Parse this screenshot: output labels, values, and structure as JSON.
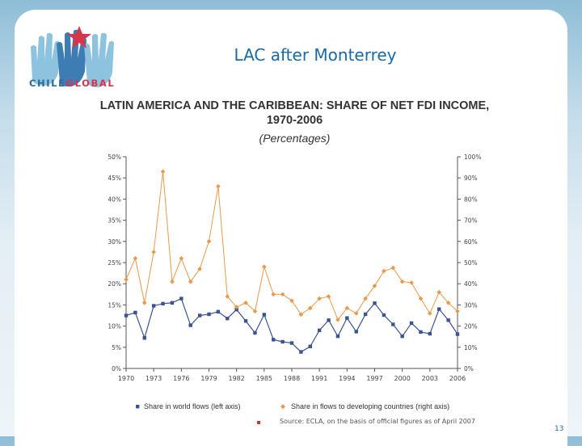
{
  "slide": {
    "title": "LAC after Monterrey",
    "logo_text_part1": "CHILE",
    "logo_text_part2": "GLOBAL",
    "source": "Source: ECLA, on the basis of official figures as of April 2007",
    "page_number": "13"
  },
  "colors": {
    "left_series": "#3a5393",
    "right_series": "#e8994a",
    "title_blue": "#1a6aa3"
  },
  "chart_data": {
    "type": "line",
    "title": "LATIN AMERICA AND THE CARIBBEAN: SHARE OF NET FDI INCOME, 1970-2006",
    "subtitle": "(Percentages)",
    "x_ticks": [
      1970,
      1973,
      1976,
      1979,
      1982,
      1985,
      1988,
      1991,
      1994,
      1997,
      2000,
      2003,
      2006
    ],
    "xlim": [
      1970,
      2006
    ],
    "left_axis": {
      "ylim": [
        0,
        50
      ],
      "ticks": [
        "0%",
        "5%",
        "10%",
        "15%",
        "20%",
        "25%",
        "30%",
        "35%",
        "40%",
        "45%",
        "50%"
      ]
    },
    "right_axis": {
      "ylim": [
        0,
        100
      ],
      "ticks": [
        "0%",
        "10%",
        "20%",
        "30%",
        "40%",
        "50%",
        "60%",
        "70%",
        "80%",
        "90%",
        "100%"
      ]
    },
    "legend_placement": "bottom",
    "series": [
      {
        "name": "Share in world flows (left axis)",
        "axis": "left",
        "x": [
          1970,
          1971,
          1972,
          1973,
          1974,
          1975,
          1976,
          1977,
          1978,
          1979,
          1980,
          1981,
          1982,
          1983,
          1984,
          1985,
          1986,
          1987,
          1988,
          1989,
          1990,
          1991,
          1992,
          1993,
          1994,
          1995,
          1996,
          1997,
          1998,
          1999,
          2000,
          2001,
          2002,
          2003,
          2004,
          2005,
          2006
        ],
        "values": [
          12.5,
          13.2,
          7.2,
          14.8,
          15.3,
          15.5,
          16.5,
          10.2,
          12.5,
          12.8,
          13.4,
          11.8,
          13.9,
          11.2,
          8.4,
          12.7,
          6.8,
          6.3,
          6.0,
          3.9,
          5.2,
          9.0,
          11.4,
          7.6,
          11.9,
          8.7,
          12.8,
          15.4,
          12.6,
          10.4,
          7.6,
          10.7,
          8.6,
          8.2,
          14.0,
          11.4,
          8.1
        ]
      },
      {
        "name": "Share in flows to developing countries (right axis)",
        "axis": "right",
        "x": [
          1970,
          1971,
          1972,
          1973,
          1974,
          1975,
          1976,
          1977,
          1978,
          1979,
          1980,
          1981,
          1982,
          1983,
          1984,
          1985,
          1986,
          1987,
          1988,
          1989,
          1990,
          1991,
          1992,
          1993,
          1994,
          1995,
          1996,
          1997,
          1998,
          1999,
          2000,
          2001,
          2002,
          2003,
          2004,
          2005,
          2006
        ],
        "values": [
          42,
          52,
          31,
          55,
          93,
          41,
          52,
          41,
          47,
          60,
          86,
          34,
          29,
          31,
          27,
          48,
          35,
          35,
          32,
          25.5,
          28.5,
          33,
          34,
          23,
          28.5,
          26,
          33,
          39,
          46,
          47.5,
          41,
          40.5,
          33,
          26,
          36,
          31,
          27
        ]
      }
    ]
  }
}
